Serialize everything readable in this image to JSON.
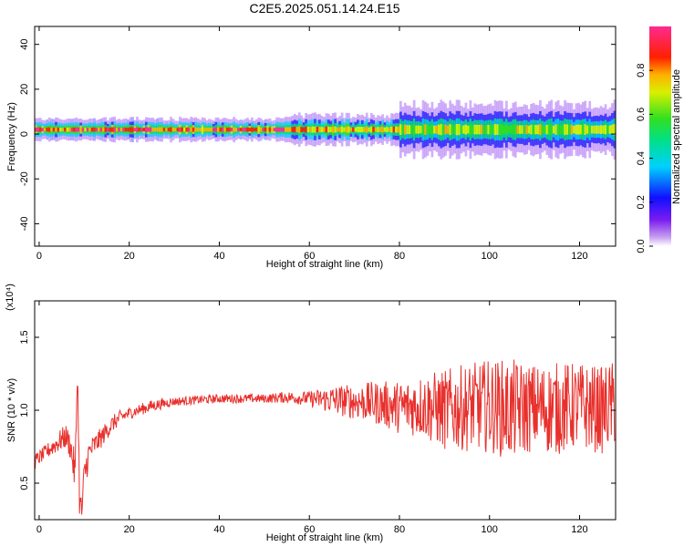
{
  "figure_title": "C2E5.2025.051.14.24.E15",
  "colors": {
    "snr_line": "#e8302c",
    "axis": "#000000",
    "background": "#ffffff"
  },
  "chart_data": [
    {
      "type": "heatmap",
      "title": "",
      "xlabel": "Height of straight line (km)",
      "ylabel": "Frequency (Hz)",
      "xlim": [
        -1,
        128
      ],
      "ylim": [
        -50,
        48
      ],
      "x_ticks": [
        0,
        20,
        40,
        60,
        80,
        100,
        120
      ],
      "y_ticks": [
        -40,
        -20,
        0,
        20,
        40
      ],
      "y_tick_labels": [
        "-40",
        "-20",
        "0",
        "20",
        "40"
      ],
      "colorbar": {
        "label": "Normalized spectral amplitude",
        "range": [
          0,
          1
        ],
        "ticks": [
          0.0,
          0.2,
          0.4,
          0.6,
          0.8
        ],
        "tick_labels": [
          "0.0",
          "0.2",
          "0.4",
          "0.6",
          "0.8"
        ],
        "colormap": "rainbow (white - violet - blue - cyan - green - yellow - red - magenta)"
      },
      "band": {
        "center_frequency_hz": 2,
        "segments": [
          {
            "x_range": [
              -1,
              55
            ],
            "half_width_hz": 3,
            "peak_amplitude": 0.9
          },
          {
            "x_range": [
              55,
              80
            ],
            "half_width_hz": 4,
            "peak_amplitude": 0.8
          },
          {
            "x_range": [
              80,
              128
            ],
            "half_width_hz": 7,
            "peak_amplitude": 0.7
          }
        ]
      }
    },
    {
      "type": "line",
      "title": "",
      "xlabel": "Height of straight line (km)",
      "ylabel": "SNR (10 * v/v)",
      "multiplier_label": "(x10⁴)",
      "xlim": [
        -1,
        128
      ],
      "ylim": [
        0.25,
        1.75
      ],
      "x_ticks": [
        0,
        20,
        40,
        60,
        80,
        100,
        120
      ],
      "y_ticks": [
        0.5,
        1.0,
        1.5
      ],
      "y_tick_labels": [
        "0.5",
        "1.0",
        "1.5"
      ],
      "series": [
        {
          "x": [
            -1,
            1,
            3,
            5,
            6,
            7,
            8,
            8.5,
            9,
            9.5,
            10,
            11,
            12,
            14,
            16,
            18,
            20,
            22,
            25,
            30,
            35,
            40,
            45,
            50,
            55,
            60,
            65,
            70,
            75,
            80,
            85,
            90,
            95,
            100,
            105,
            110,
            115,
            120,
            125,
            128
          ],
          "values": [
            0.65,
            0.7,
            0.75,
            0.8,
            0.82,
            0.75,
            0.55,
            1.3,
            0.35,
            0.3,
            0.55,
            0.7,
            0.75,
            0.82,
            0.9,
            0.95,
            0.98,
            1.0,
            1.03,
            1.06,
            1.07,
            1.08,
            1.08,
            1.08,
            1.09,
            1.08,
            1.07,
            1.06,
            1.05,
            1.02,
            1.03,
            1.0,
            1.02,
            1.03,
            1.0,
            1.02,
            1.01,
            1.03,
            1.0,
            1.05
          ],
          "spread": [
            0.05,
            0.05,
            0.06,
            0.08,
            0.08,
            0.1,
            0.15,
            0.1,
            0.15,
            0.1,
            0.12,
            0.1,
            0.08,
            0.07,
            0.06,
            0.05,
            0.04,
            0.04,
            0.04,
            0.03,
            0.03,
            0.03,
            0.03,
            0.03,
            0.04,
            0.05,
            0.1,
            0.12,
            0.15,
            0.18,
            0.22,
            0.28,
            0.3,
            0.32,
            0.35,
            0.3,
            0.32,
            0.3,
            0.3,
            0.3
          ]
        }
      ]
    }
  ]
}
